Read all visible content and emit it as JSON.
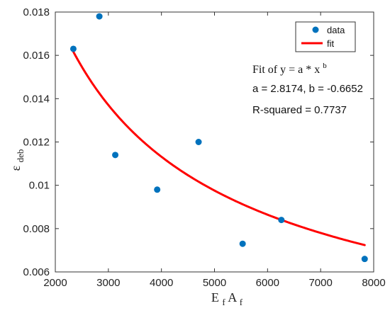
{
  "chart_data": {
    "type": "scatter",
    "title": "",
    "xlim": [
      2000,
      8000
    ],
    "ylim": [
      0.006,
      0.018
    ],
    "grid": false,
    "x_ticks": [
      2000,
      3000,
      4000,
      5000,
      6000,
      7000,
      8000
    ],
    "x_tick_labels": [
      "2000",
      "3000",
      "4000",
      "5000",
      "6000",
      "7000",
      "8000"
    ],
    "y_ticks": [
      0.006,
      0.008,
      0.01,
      0.012,
      0.014,
      0.016,
      0.018
    ],
    "y_tick_labels": [
      "0.006",
      "0.008",
      "0.01",
      "0.012",
      "0.014",
      "0.016",
      "0.018"
    ],
    "xlabel": {
      "main1": "E",
      "sub1": "f",
      "main2": "A",
      "sub2": "f"
    },
    "ylabel": {
      "main": "ε",
      "sub": "deb"
    },
    "legend": {
      "position": "top-right",
      "entries": [
        {
          "label": "data",
          "kind": "marker"
        },
        {
          "label": "fit",
          "kind": "line"
        }
      ]
    },
    "series": [
      {
        "name": "data",
        "kind": "scatter",
        "color": "#0072BD",
        "points": [
          {
            "x": 2340,
            "y": 0.0163
          },
          {
            "x": 2830,
            "y": 0.0178
          },
          {
            "x": 3130,
            "y": 0.0114
          },
          {
            "x": 3920,
            "y": 0.0098
          },
          {
            "x": 4700,
            "y": 0.012
          },
          {
            "x": 5530,
            "y": 0.0073
          },
          {
            "x": 6260,
            "y": 0.0084
          },
          {
            "x": 7830,
            "y": 0.0066
          }
        ]
      },
      {
        "name": "fit",
        "kind": "curve",
        "color": "#FF0000",
        "model": "power",
        "a": 2.8174,
        "b": -0.6652,
        "x_range": [
          2340,
          7830
        ]
      }
    ],
    "annotations": {
      "fit_prefix": "Fit of y = a * x",
      "fit_exponent": "b",
      "params": "a = 2.8174, b = -0.6652",
      "rsquared": "R-squared = 0.7737"
    }
  }
}
